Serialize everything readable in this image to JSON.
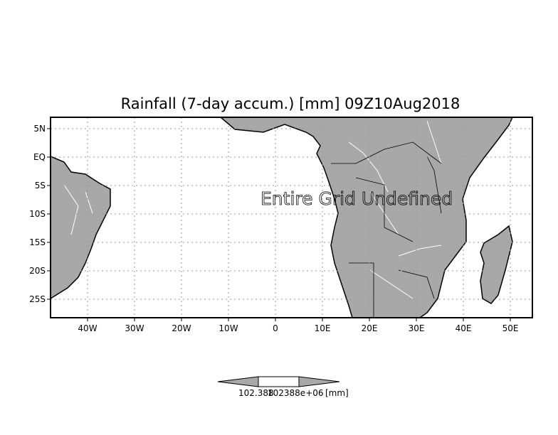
{
  "title": "Rainfall (7-day accum.) [mm] 09Z10Aug2018",
  "message": "Entire Grid Undefined",
  "lat_labels": [
    "5N",
    "EQ",
    "5S",
    "10S",
    "15S",
    "20S",
    "25S"
  ],
  "lon_labels": [
    "40W",
    "30W",
    "20W",
    "10W",
    "0",
    "10E",
    "20E",
    "30E",
    "40E",
    "50E"
  ],
  "colorbar": {
    "label_left": "102.388",
    "label_right": "102388e+06",
    "units": "[mm]"
  },
  "colors": {
    "land": "#a8a8a8",
    "frame": "#000000",
    "grid": "#999999"
  }
}
